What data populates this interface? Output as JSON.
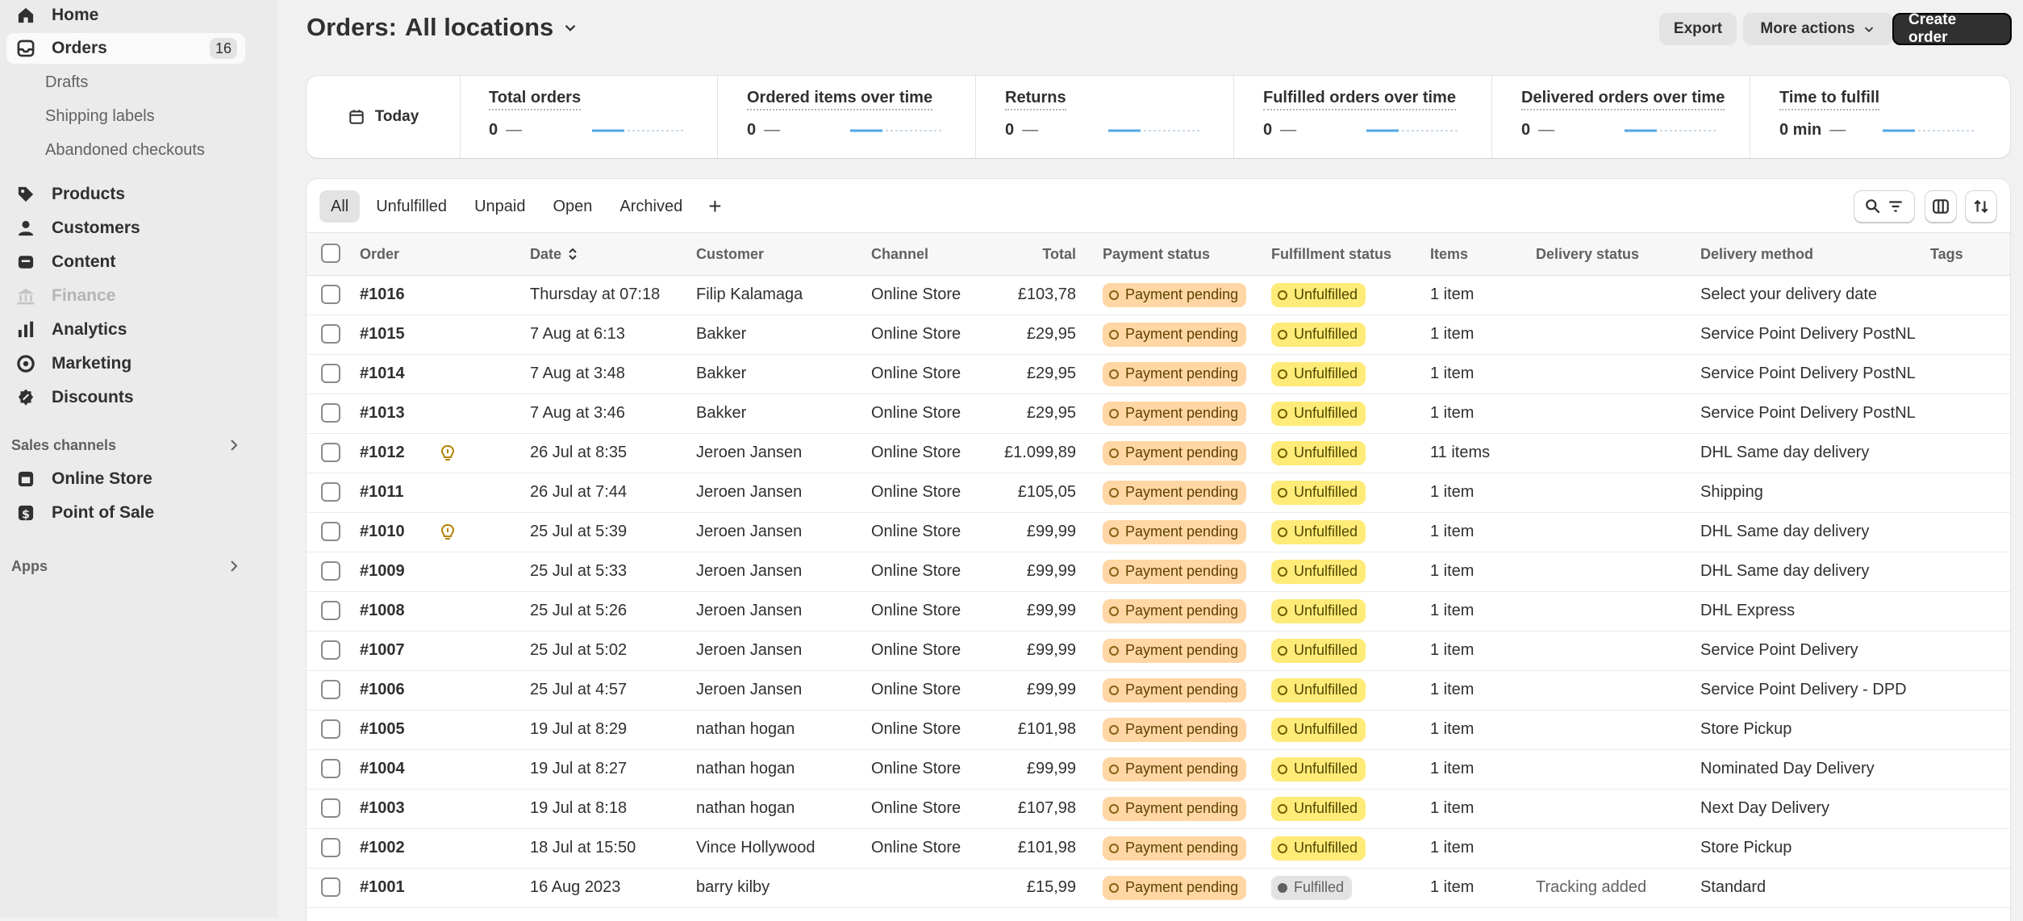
{
  "sidebar": {
    "home": "Home",
    "orders": "Orders",
    "orders_count": "16",
    "drafts": "Drafts",
    "shipping_labels": "Shipping labels",
    "abandoned_checkouts": "Abandoned checkouts",
    "products": "Products",
    "customers": "Customers",
    "content": "Content",
    "finance": "Finance",
    "analytics": "Analytics",
    "marketing": "Marketing",
    "discounts": "Discounts",
    "sales_channels": "Sales channels",
    "online_store": "Online Store",
    "point_of_sale": "Point of Sale",
    "apps": "Apps"
  },
  "header": {
    "title": "Orders:",
    "location": "All locations",
    "export": "Export",
    "more_actions": "More actions",
    "create_order": "Create order"
  },
  "metrics": {
    "today": "Today",
    "items": [
      {
        "label": "Total orders",
        "value": "0"
      },
      {
        "label": "Ordered items over time",
        "value": "0"
      },
      {
        "label": "Returns",
        "value": "0"
      },
      {
        "label": "Fulfilled orders over time",
        "value": "0"
      },
      {
        "label": "Delivered orders over time",
        "value": "0"
      },
      {
        "label": "Time to fulfill",
        "value": "0 min"
      }
    ],
    "dash": "—"
  },
  "tabs": [
    "All",
    "Unfulfilled",
    "Unpaid",
    "Open",
    "Archived",
    "+"
  ],
  "columns": {
    "order": "Order",
    "date": "Date",
    "customer": "Customer",
    "channel": "Channel",
    "total": "Total",
    "payment_status": "Payment status",
    "fulfillment_status": "Fulfillment status",
    "items": "Items",
    "delivery_status": "Delivery status",
    "delivery_method": "Delivery method",
    "tags": "Tags"
  },
  "orders": [
    {
      "id": "#1016",
      "note": false,
      "date": "Thursday at 07:18",
      "customer": "Filip Kalamaga",
      "channel": "Online Store",
      "total": "£103,78",
      "payment": "Payment pending",
      "fulfillment": "Unfulfilled",
      "items": "1 item",
      "delivery_status": "",
      "method": "Select your delivery date"
    },
    {
      "id": "#1015",
      "note": false,
      "date": "7 Aug at 6:13",
      "customer": "Bakker",
      "channel": "Online Store",
      "total": "£29,95",
      "payment": "Payment pending",
      "fulfillment": "Unfulfilled",
      "items": "1 item",
      "delivery_status": "",
      "method": "Service Point Delivery PostNL"
    },
    {
      "id": "#1014",
      "note": false,
      "date": "7 Aug at 3:48",
      "customer": "Bakker",
      "channel": "Online Store",
      "total": "£29,95",
      "payment": "Payment pending",
      "fulfillment": "Unfulfilled",
      "items": "1 item",
      "delivery_status": "",
      "method": "Service Point Delivery PostNL"
    },
    {
      "id": "#1013",
      "note": false,
      "date": "7 Aug at 3:46",
      "customer": "Bakker",
      "channel": "Online Store",
      "total": "£29,95",
      "payment": "Payment pending",
      "fulfillment": "Unfulfilled",
      "items": "1 item",
      "delivery_status": "",
      "method": "Service Point Delivery PostNL"
    },
    {
      "id": "#1012",
      "note": true,
      "date": "26 Jul at 8:35",
      "customer": "Jeroen Jansen",
      "channel": "Online Store",
      "total": "£1.099,89",
      "payment": "Payment pending",
      "fulfillment": "Unfulfilled",
      "items": "11 items",
      "delivery_status": "",
      "method": "DHL Same day delivery"
    },
    {
      "id": "#1011",
      "note": false,
      "date": "26 Jul at 7:44",
      "customer": "Jeroen Jansen",
      "channel": "Online Store",
      "total": "£105,05",
      "payment": "Payment pending",
      "fulfillment": "Unfulfilled",
      "items": "1 item",
      "delivery_status": "",
      "method": "Shipping"
    },
    {
      "id": "#1010",
      "note": true,
      "date": "25 Jul at 5:39",
      "customer": "Jeroen Jansen",
      "channel": "Online Store",
      "total": "£99,99",
      "payment": "Payment pending",
      "fulfillment": "Unfulfilled",
      "items": "1 item",
      "delivery_status": "",
      "method": "DHL Same day delivery"
    },
    {
      "id": "#1009",
      "note": false,
      "date": "25 Jul at 5:33",
      "customer": "Jeroen Jansen",
      "channel": "Online Store",
      "total": "£99,99",
      "payment": "Payment pending",
      "fulfillment": "Unfulfilled",
      "items": "1 item",
      "delivery_status": "",
      "method": "DHL Same day delivery"
    },
    {
      "id": "#1008",
      "note": false,
      "date": "25 Jul at 5:26",
      "customer": "Jeroen Jansen",
      "channel": "Online Store",
      "total": "£99,99",
      "payment": "Payment pending",
      "fulfillment": "Unfulfilled",
      "items": "1 item",
      "delivery_status": "",
      "method": "DHL Express"
    },
    {
      "id": "#1007",
      "note": false,
      "date": "25 Jul at 5:02",
      "customer": "Jeroen Jansen",
      "channel": "Online Store",
      "total": "£99,99",
      "payment": "Payment pending",
      "fulfillment": "Unfulfilled",
      "items": "1 item",
      "delivery_status": "",
      "method": "Service Point Delivery"
    },
    {
      "id": "#1006",
      "note": false,
      "date": "25 Jul at 4:57",
      "customer": "Jeroen Jansen",
      "channel": "Online Store",
      "total": "£99,99",
      "payment": "Payment pending",
      "fulfillment": "Unfulfilled",
      "items": "1 item",
      "delivery_status": "",
      "method": "Service Point Delivery - DPD"
    },
    {
      "id": "#1005",
      "note": false,
      "date": "19 Jul at 8:29",
      "customer": "nathan hogan",
      "channel": "Online Store",
      "total": "£101,98",
      "payment": "Payment pending",
      "fulfillment": "Unfulfilled",
      "items": "1 item",
      "delivery_status": "",
      "method": "Store Pickup"
    },
    {
      "id": "#1004",
      "note": false,
      "date": "19 Jul at 8:27",
      "customer": "nathan hogan",
      "channel": "Online Store",
      "total": "£99,99",
      "payment": "Payment pending",
      "fulfillment": "Unfulfilled",
      "items": "1 item",
      "delivery_status": "",
      "method": "Nominated Day Delivery"
    },
    {
      "id": "#1003",
      "note": false,
      "date": "19 Jul at 8:18",
      "customer": "nathan hogan",
      "channel": "Online Store",
      "total": "£107,98",
      "payment": "Payment pending",
      "fulfillment": "Unfulfilled",
      "items": "1 item",
      "delivery_status": "",
      "method": "Next Day Delivery"
    },
    {
      "id": "#1002",
      "note": false,
      "date": "18 Jul at 15:50",
      "customer": "Vince Hollywood",
      "channel": "Online Store",
      "total": "£101,98",
      "payment": "Payment pending",
      "fulfillment": "Unfulfilled",
      "items": "1 item",
      "delivery_status": "",
      "method": "Store Pickup"
    },
    {
      "id": "#1001",
      "note": false,
      "date": "16 Aug 2023",
      "customer": "barry kilby",
      "channel": "",
      "total": "£15,99",
      "payment": "Payment pending",
      "fulfillment": "Fulfilled",
      "items": "1 item",
      "delivery_status": "Tracking added",
      "method": "Standard"
    }
  ],
  "colors": {
    "payment_pending_bg": "#ffd6a4",
    "unfulfilled_bg": "#ffeb78",
    "fulfilled_bg": "#e3e3e3",
    "primary_button": "#303030",
    "sparkline": "#4fa5e6"
  }
}
